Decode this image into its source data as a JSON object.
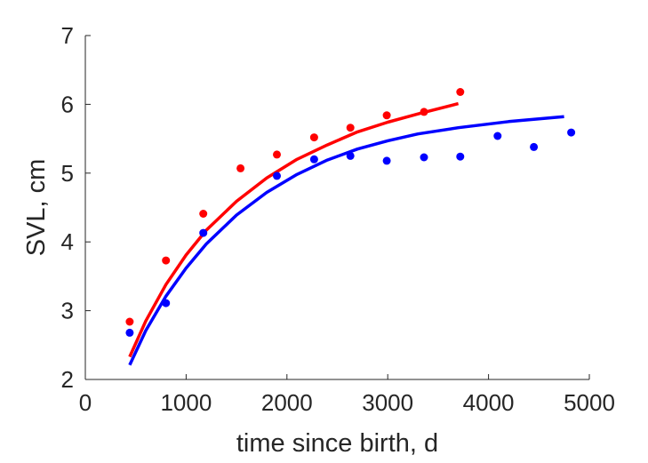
{
  "chart_data": {
    "type": "scatter",
    "title": "",
    "xlabel": "time since birth, d",
    "ylabel": "SVL, cm",
    "xlim": [
      0,
      5000
    ],
    "ylim": [
      2,
      7
    ],
    "xticks": [
      0,
      1000,
      2000,
      3000,
      4000,
      5000
    ],
    "yticks": [
      2,
      3,
      4,
      5,
      6,
      7
    ],
    "grid": false,
    "legend": "none",
    "series": [
      {
        "color": "#ff0000",
        "points": [
          [
            440,
            2.84
          ],
          [
            800,
            3.73
          ],
          [
            1170,
            4.41
          ],
          [
            1540,
            5.07
          ],
          [
            1900,
            5.27
          ],
          [
            2270,
            5.52
          ],
          [
            2630,
            5.66
          ],
          [
            2990,
            5.84
          ],
          [
            3360,
            5.89
          ],
          [
            3720,
            6.18
          ]
        ],
        "fit": [
          [
            440,
            2.33
          ],
          [
            600,
            2.85
          ],
          [
            800,
            3.38
          ],
          [
            1000,
            3.81
          ],
          [
            1200,
            4.17
          ],
          [
            1500,
            4.59
          ],
          [
            1800,
            4.93
          ],
          [
            2100,
            5.2
          ],
          [
            2400,
            5.41
          ],
          [
            2700,
            5.6
          ],
          [
            3000,
            5.74
          ],
          [
            3300,
            5.86
          ],
          [
            3700,
            6.01
          ]
        ]
      },
      {
        "color": "#0000ff",
        "points": [
          [
            440,
            2.68
          ],
          [
            800,
            3.11
          ],
          [
            1170,
            4.13
          ],
          [
            1900,
            4.96
          ],
          [
            2270,
            5.2
          ],
          [
            2630,
            5.25
          ],
          [
            2990,
            5.18
          ],
          [
            3360,
            5.23
          ],
          [
            3720,
            5.24
          ],
          [
            4090,
            5.54
          ],
          [
            4450,
            5.38
          ],
          [
            4820,
            5.59
          ]
        ],
        "fit": [
          [
            440,
            2.21
          ],
          [
            600,
            2.71
          ],
          [
            800,
            3.21
          ],
          [
            1000,
            3.62
          ],
          [
            1200,
            3.97
          ],
          [
            1500,
            4.39
          ],
          [
            1800,
            4.72
          ],
          [
            2100,
            4.98
          ],
          [
            2400,
            5.19
          ],
          [
            2700,
            5.35
          ],
          [
            3000,
            5.47
          ],
          [
            3300,
            5.57
          ],
          [
            3700,
            5.66
          ],
          [
            4200,
            5.75
          ],
          [
            4750,
            5.82
          ]
        ]
      }
    ]
  }
}
